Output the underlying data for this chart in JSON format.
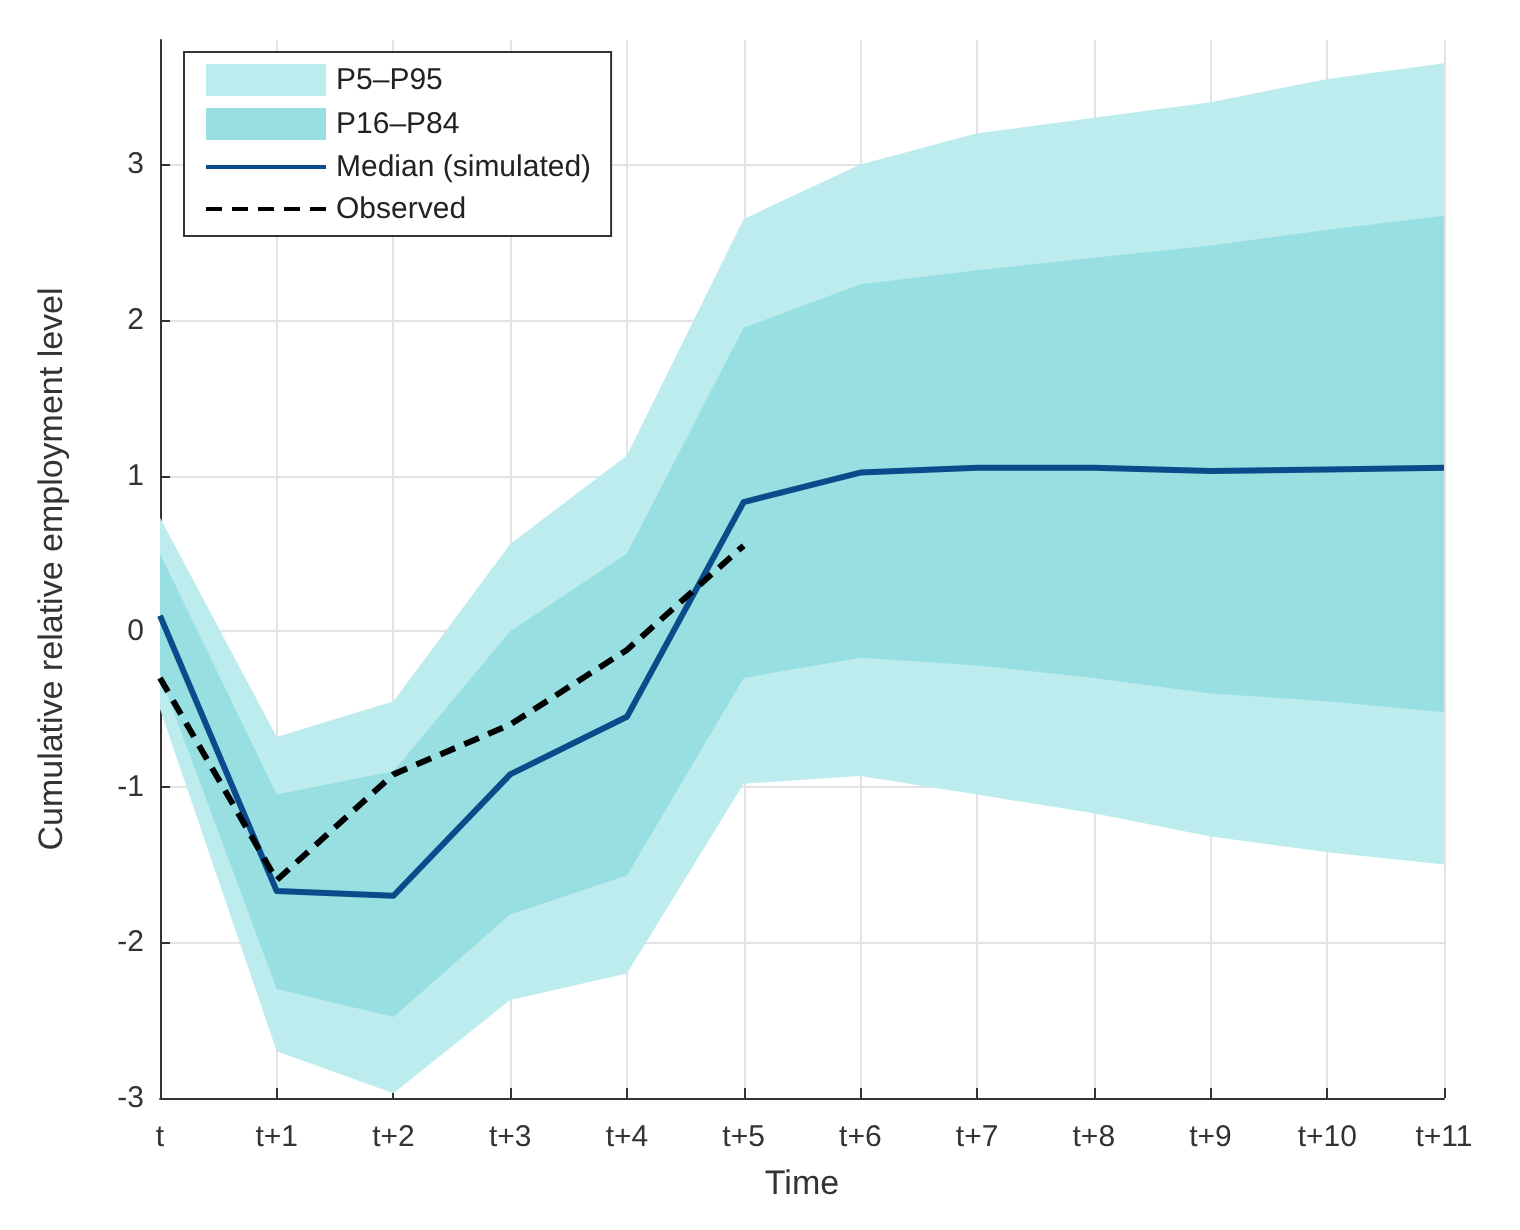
{
  "chart_data": {
    "type": "line",
    "xlabel": "Time",
    "ylabel": "Cumulative relative employment level",
    "categories": [
      "t",
      "t+1",
      "t+2",
      "t+3",
      "t+4",
      "t+5",
      "t+6",
      "t+7",
      "t+8",
      "t+9",
      "t+10",
      "t+11"
    ],
    "ylim": [
      -3,
      3.8
    ],
    "yticks": [
      -3,
      -2,
      -1,
      0,
      1,
      2,
      3
    ],
    "grid": true,
    "legend": "top left",
    "series": [
      {
        "name": "P5–P95",
        "color": "#bdecee",
        "values": [
          null,
          null,
          null,
          null,
          null,
          null,
          null,
          null,
          null,
          null,
          null,
          null
        ],
        "lower": [
          -0.5,
          -2.7,
          -2.97,
          -2.37,
          -2.2,
          -0.98,
          -0.93,
          -1.05,
          -1.17,
          -1.32,
          -1.42,
          -1.5
        ],
        "upper": [
          0.73,
          -0.68,
          -0.45,
          0.56,
          1.13,
          2.65,
          3.0,
          3.2,
          3.3,
          3.4,
          3.55,
          3.65
        ]
      },
      {
        "name": "P16–P84",
        "color": "#97dfe1",
        "values": [
          null,
          null,
          null,
          null,
          null,
          null,
          null,
          null,
          null,
          null,
          null,
          null
        ],
        "lower": [
          -0.28,
          -2.3,
          -2.48,
          -1.82,
          -1.57,
          -0.3,
          -0.17,
          -0.22,
          -0.3,
          -0.4,
          -0.45,
          -0.52
        ],
        "upper": [
          0.5,
          -1.05,
          -0.9,
          0.0,
          0.5,
          1.95,
          2.23,
          2.32,
          2.4,
          2.48,
          2.58,
          2.67
        ]
      },
      {
        "name": "Median (simulated)",
        "color": "#0b4a8b",
        "line_style": "solid",
        "values": [
          0.1,
          -1.67,
          -1.7,
          -0.92,
          -0.55,
          0.83,
          1.02,
          1.05,
          1.05,
          1.03,
          1.04,
          1.05
        ]
      },
      {
        "name": "Observed",
        "color": "#000000",
        "line_style": "dashed",
        "values": [
          -0.3,
          -1.6,
          -0.92,
          -0.6,
          -0.12,
          0.55,
          null,
          null,
          null,
          null,
          null,
          null
        ]
      }
    ]
  }
}
